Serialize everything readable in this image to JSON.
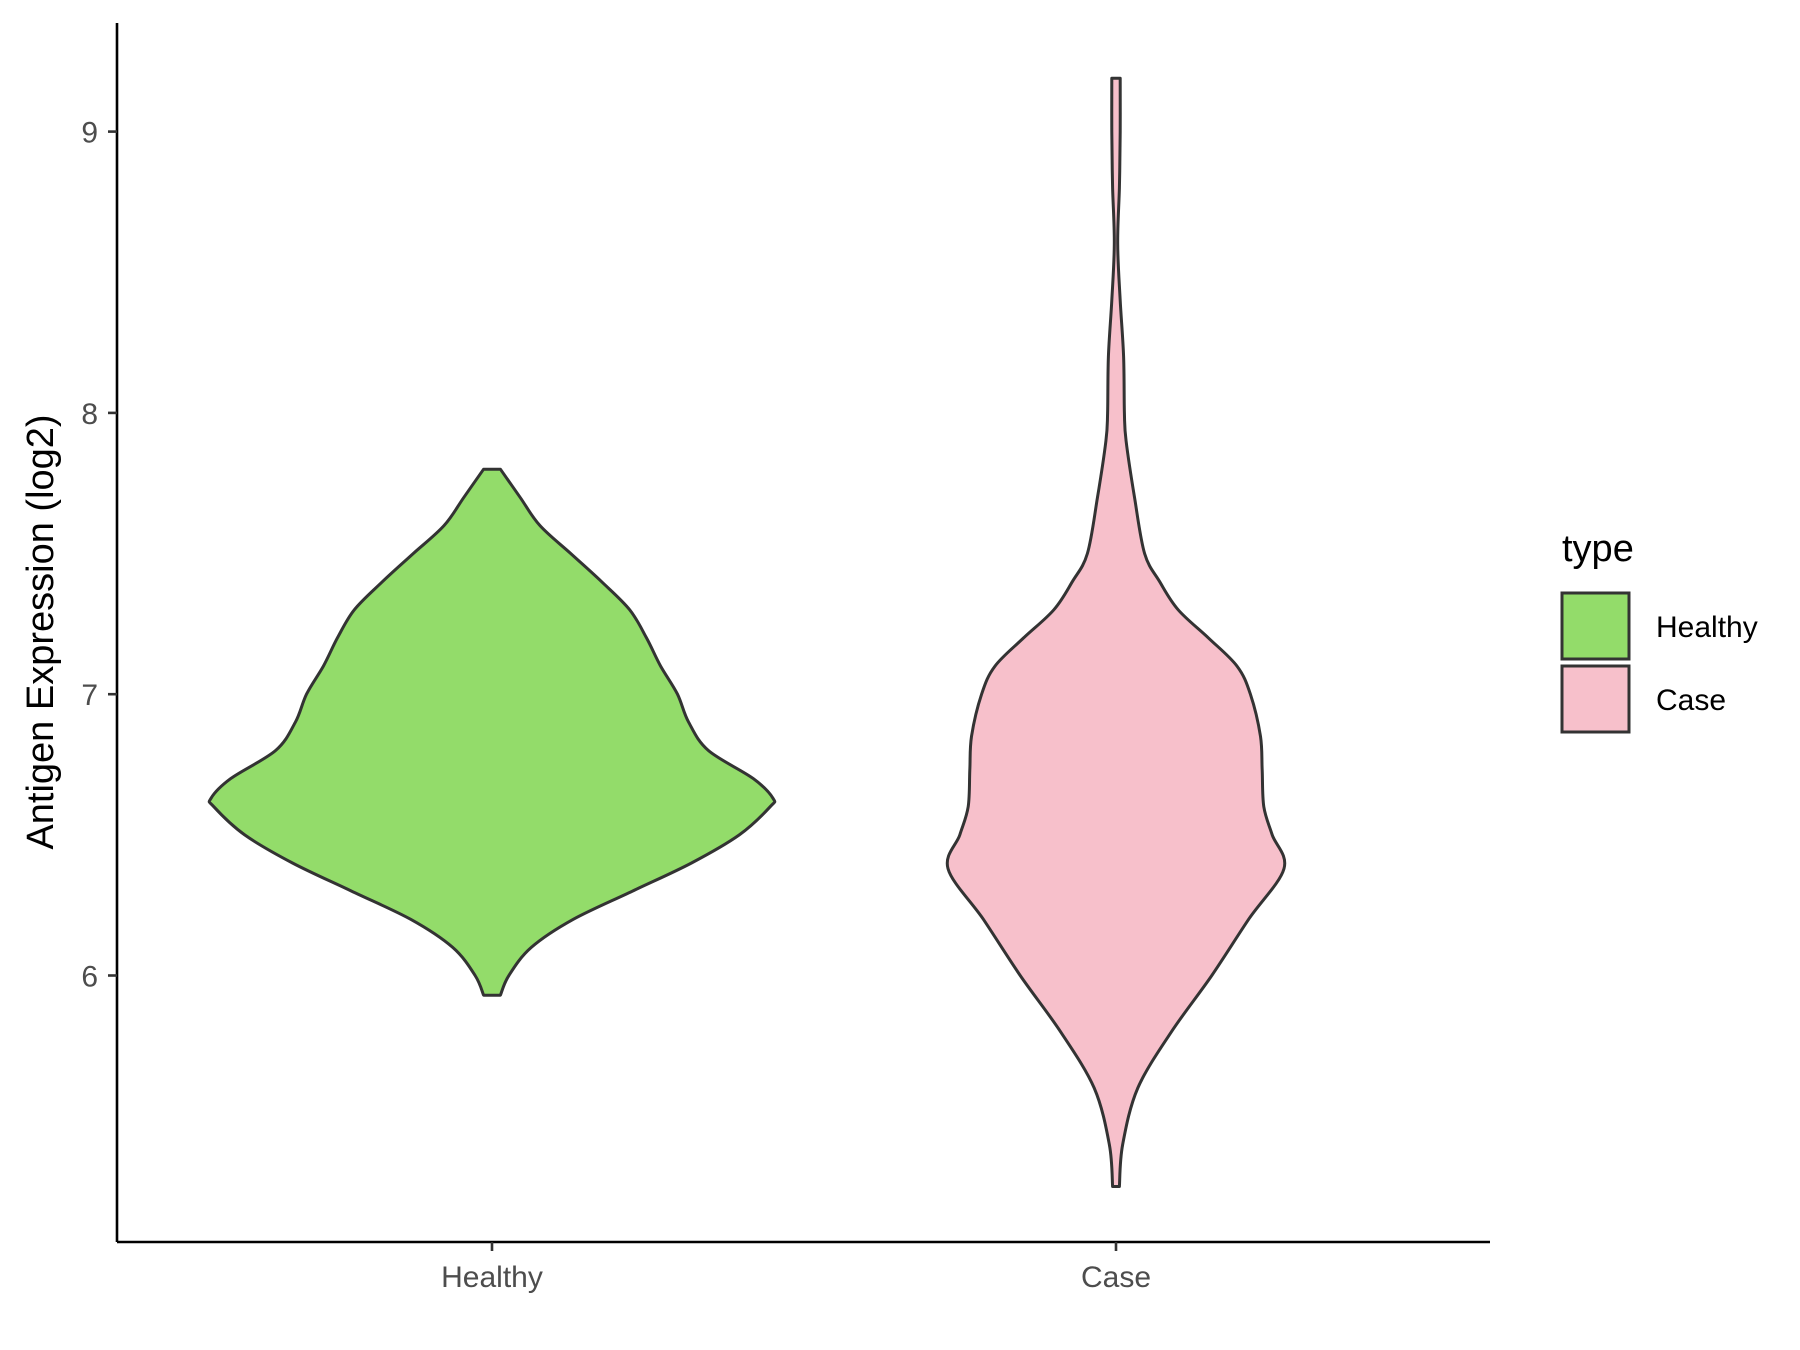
{
  "chart_data": {
    "type": "violin",
    "title": "",
    "xlabel": "",
    "ylabel": "Antigen Expression (log2)",
    "ylim": [
      5.1,
      9.4
    ],
    "yticks": [
      "6",
      "7",
      "8",
      "9"
    ],
    "categories": [
      "Healthy",
      "Case"
    ],
    "legend": {
      "title": "type",
      "position": "right",
      "entries": [
        {
          "label": "Healthy",
          "color": "#93dc6a"
        },
        {
          "label": "Case",
          "color": "#f7c0cb"
        }
      ]
    },
    "grid": false,
    "series": [
      {
        "category": "Healthy",
        "color": "#93dc6a",
        "min": 5.93,
        "max": 7.8,
        "density": [
          {
            "y": 5.93,
            "w": 0.03
          },
          {
            "y": 6.0,
            "w": 0.06
          },
          {
            "y": 6.1,
            "w": 0.14
          },
          {
            "y": 6.2,
            "w": 0.29
          },
          {
            "y": 6.3,
            "w": 0.5
          },
          {
            "y": 6.4,
            "w": 0.71
          },
          {
            "y": 6.5,
            "w": 0.88
          },
          {
            "y": 6.6,
            "w": 0.99
          },
          {
            "y": 6.63,
            "w": 1.0
          },
          {
            "y": 6.7,
            "w": 0.93
          },
          {
            "y": 6.8,
            "w": 0.77
          },
          {
            "y": 6.9,
            "w": 0.7
          },
          {
            "y": 7.0,
            "w": 0.66
          },
          {
            "y": 7.1,
            "w": 0.6
          },
          {
            "y": 7.2,
            "w": 0.55
          },
          {
            "y": 7.3,
            "w": 0.49
          },
          {
            "y": 7.4,
            "w": 0.39
          },
          {
            "y": 7.5,
            "w": 0.28
          },
          {
            "y": 7.6,
            "w": 0.17
          },
          {
            "y": 7.7,
            "w": 0.1
          },
          {
            "y": 7.8,
            "w": 0.03
          }
        ]
      },
      {
        "category": "Case",
        "color": "#f7c0cb",
        "min": 5.25,
        "max": 9.19,
        "density": [
          {
            "y": 5.25,
            "w": 0.02
          },
          {
            "y": 5.4,
            "w": 0.04
          },
          {
            "y": 5.6,
            "w": 0.13
          },
          {
            "y": 5.8,
            "w": 0.33
          },
          {
            "y": 6.0,
            "w": 0.57
          },
          {
            "y": 6.2,
            "w": 0.79
          },
          {
            "y": 6.38,
            "w": 1.0
          },
          {
            "y": 6.5,
            "w": 0.93
          },
          {
            "y": 6.6,
            "w": 0.88
          },
          {
            "y": 6.73,
            "w": 0.87
          },
          {
            "y": 6.85,
            "w": 0.86
          },
          {
            "y": 7.0,
            "w": 0.8
          },
          {
            "y": 7.1,
            "w": 0.72
          },
          {
            "y": 7.2,
            "w": 0.55
          },
          {
            "y": 7.3,
            "w": 0.37
          },
          {
            "y": 7.4,
            "w": 0.26
          },
          {
            "y": 7.5,
            "w": 0.17
          },
          {
            "y": 7.7,
            "w": 0.11
          },
          {
            "y": 7.9,
            "w": 0.06
          },
          {
            "y": 8.0,
            "w": 0.05
          },
          {
            "y": 8.2,
            "w": 0.045
          },
          {
            "y": 8.4,
            "w": 0.025
          },
          {
            "y": 8.6,
            "w": 0.01
          },
          {
            "y": 8.8,
            "w": 0.02
          },
          {
            "y": 9.0,
            "w": 0.025
          },
          {
            "y": 9.19,
            "w": 0.025
          }
        ]
      }
    ]
  }
}
